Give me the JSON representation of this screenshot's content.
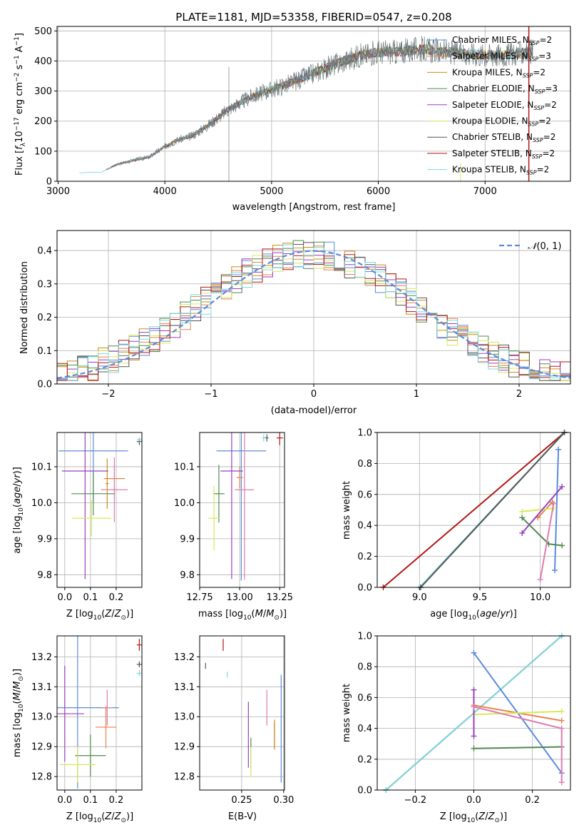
{
  "figure": {
    "title": "PLATE=1181, MJD=53358, FIBERID=0547, z=0.208"
  },
  "colors": {
    "chabrier_miles": "#5b8bd9",
    "salpeter_miles": "#e8814d",
    "kroupa_miles": "#c98a1c",
    "chabrier_elodie": "#4d8b4d",
    "salpeter_elodie": "#9a3fc0",
    "kroupa_elodie": "#d9e85a",
    "chabrier_stelib": "#555555",
    "salpeter_stelib": "#b01818",
    "kroupa_stelib": "#7fd8e0",
    "pink": "#e07bb0",
    "grid": "#b0b0b0"
  },
  "chart_data": [
    {
      "id": "spectrum",
      "type": "line",
      "title": "PLATE=1181, MJD=53358, FIBERID=0547, z=0.208",
      "xlabel": "wavelength [Angstrom, rest frame]",
      "ylabel": "Flux [f_λ 10^-17 erg cm^-2 s^-1 A^-1]",
      "xlim": [
        2990,
        7800
      ],
      "ylim": [
        0,
        515
      ],
      "xticks": [
        3000,
        4000,
        5000,
        6000,
        7000
      ],
      "yticks": [
        0,
        100,
        200,
        300,
        400,
        500
      ],
      "legend_position": "right",
      "legend": [
        {
          "label": "Chabrier MILES, N",
          "sub": "SSP",
          "tail": "=2"
        },
        {
          "label": "Salpeter MILES, N",
          "sub": "SSP",
          "tail": "=3"
        },
        {
          "label": "Kroupa MILES, N",
          "sub": "SSP",
          "tail": "=2"
        },
        {
          "label": "Chabrier ELODIE, N",
          "sub": "SSP",
          "tail": "=3"
        },
        {
          "label": "Salpeter ELODIE, N",
          "sub": "SSP",
          "tail": "=2"
        },
        {
          "label": "Kroupa ELODIE, N",
          "sub": "SSP",
          "tail": "=2"
        },
        {
          "label": "Chabrier STELIB, N",
          "sub": "SSP",
          "tail": "=2"
        },
        {
          "label": "Salpeter STELIB, N",
          "sub": "SSP",
          "tail": "=2"
        },
        {
          "label": "Kroupa STELIB, N",
          "sub": "SSP",
          "tail": "=2"
        }
      ],
      "continuum_x": [
        3200,
        3400,
        3550,
        3700,
        3850,
        4000,
        4100,
        4250,
        4400,
        4600,
        4800,
        5000,
        5200,
        5400,
        5600,
        5800,
        6000,
        6200,
        6400,
        6600,
        6800,
        7000,
        7200,
        7400
      ],
      "continuum_y": [
        28,
        30,
        55,
        70,
        80,
        115,
        135,
        150,
        185,
        240,
        280,
        305,
        330,
        360,
        390,
        415,
        430,
        430,
        440,
        430,
        425,
        420,
        420,
        430
      ]
    },
    {
      "id": "residuals",
      "type": "step",
      "xlabel": "(data-model)/error",
      "ylabel": "Normed distribution",
      "xlim": [
        -2.5,
        2.5
      ],
      "ylim": [
        0,
        0.46
      ],
      "xticks": [
        -2,
        -1,
        0,
        1,
        2
      ],
      "yticks": [
        0.0,
        0.1,
        0.2,
        0.3,
        0.4
      ],
      "legend": [
        {
          "label": "N(0,1)"
        }
      ],
      "legend_position": "top-right",
      "bin_width": 0.1
    },
    {
      "id": "age_vs_Z",
      "type": "scatter",
      "xlabel": "Z [log10(Z/Z⊙)]",
      "ylabel": "age [log10(age/yr)]",
      "xlim": [
        -0.03,
        0.3
      ],
      "ylim": [
        9.765,
        10.195
      ],
      "xticks": [
        0.0,
        0.1,
        0.2
      ],
      "yticks": [
        9.8,
        9.9,
        10.0,
        10.1
      ],
      "points": [
        {
          "series": "chabrier_miles",
          "x": 0.111,
          "y": 10.144,
          "xerr": 0.135,
          "yerr": 0.14
        },
        {
          "series": "salpeter_miles",
          "x": 0.193,
          "y": 10.067,
          "xerr": 0.041,
          "yerr": 0.04
        },
        {
          "series": "kroupa_miles",
          "x": 0.165,
          "y": 10.053,
          "xerr": 0.006,
          "yerr": 0.07
        },
        {
          "series": "chabrier_elodie",
          "x": 0.111,
          "y": 10.025,
          "xerr": 0.085,
          "yerr": 0.06
        },
        {
          "series": "salpeter_elodie",
          "x": 0.079,
          "y": 10.088,
          "xerr": 0.09,
          "yerr": 0.3
        },
        {
          "series": "kroupa_elodie",
          "x": 0.104,
          "y": 9.957,
          "xerr": 0.077,
          "yerr": 0.05
        },
        {
          "series": "pink",
          "x": 0.193,
          "y": 10.036,
          "xerr": 0.052,
          "yerr": 0.09
        },
        {
          "series": "chabrier_stelib",
          "x": 0.29,
          "y": 10.17,
          "xerr": 0.01,
          "yerr": 0.01
        },
        {
          "series": "kroupa_stelib",
          "x": 0.291,
          "y": 10.175,
          "xerr": 0.01,
          "yerr": 0.005
        }
      ]
    },
    {
      "id": "age_vs_mass",
      "type": "scatter",
      "xlabel": "mass [log10(M/M⊙)]",
      "ylabel": "",
      "xlim": [
        12.75,
        13.28
      ],
      "ylim": [
        9.765,
        10.195
      ],
      "xticks": [
        12.75,
        13.0,
        13.25
      ],
      "yticks": [
        9.8,
        9.9,
        10.0,
        10.1
      ],
      "points": [
        {
          "series": "chabrier_miles",
          "x": 13.01,
          "y": 10.144,
          "xerr": 0.155,
          "yerr": 0.36
        },
        {
          "series": "salpeter_miles",
          "x": 13.0,
          "y": 10.07,
          "xerr": 0.02,
          "yerr": 0.03
        },
        {
          "series": "chabrier_elodie",
          "x": 12.87,
          "y": 10.025,
          "xerr": 0.035,
          "yerr": 0.08
        },
        {
          "series": "salpeter_elodie",
          "x": 12.95,
          "y": 10.088,
          "xerr": 0.07,
          "yerr": 0.3
        },
        {
          "series": "kroupa_elodie",
          "x": 12.84,
          "y": 9.957,
          "xerr": 0.035,
          "yerr": 0.09
        },
        {
          "series": "pink",
          "x": 13.03,
          "y": 10.036,
          "xerr": 0.06,
          "yerr": 0.25
        },
        {
          "series": "salpeter_stelib",
          "x": 13.25,
          "y": 10.18,
          "xerr": 0.02,
          "yerr": 0.02
        },
        {
          "series": "chabrier_stelib",
          "x": 13.17,
          "y": 10.18,
          "xerr": 0.01,
          "yerr": 0.01
        },
        {
          "series": "kroupa_stelib",
          "x": 13.15,
          "y": 10.18,
          "xerr": 0.01,
          "yerr": 0.01
        }
      ]
    },
    {
      "id": "massweight_vs_age",
      "type": "line",
      "xlabel": "age [log10(age/yr)]",
      "ylabel": "mass weight",
      "xlim": [
        8.65,
        10.25
      ],
      "ylim": [
        0,
        1.0
      ],
      "xticks": [
        9.0,
        9.5,
        10.0
      ],
      "yticks": [
        0.0,
        0.2,
        0.4,
        0.6,
        0.8,
        1.0
      ],
      "series": [
        {
          "name": "salpeter_stelib",
          "x": [
            8.7,
            10.2
          ],
          "y": [
            0.0,
            1.0
          ]
        },
        {
          "name": "kroupa_stelib",
          "x": [
            9.0,
            10.2
          ],
          "y": [
            0.0,
            1.0
          ]
        },
        {
          "name": "chabrier_stelib",
          "x": [
            9.01,
            10.2
          ],
          "y": [
            0.0,
            1.0
          ]
        },
        {
          "name": "chabrier_miles",
          "x": [
            10.15,
            10.12
          ],
          "y": [
            0.89,
            0.11
          ]
        },
        {
          "name": "salpeter_miles",
          "x": [
            9.98,
            10.1
          ],
          "y": [
            0.45,
            0.55
          ]
        },
        {
          "name": "kroupa_elodie",
          "x": [
            9.85,
            10.11
          ],
          "y": [
            0.49,
            0.51
          ]
        },
        {
          "name": "salpeter_elodie",
          "x": [
            9.85,
            10.18
          ],
          "y": [
            0.35,
            0.65
          ]
        },
        {
          "name": "chabrier_elodie",
          "x": [
            9.85,
            10.07,
            10.18
          ],
          "y": [
            0.45,
            0.28,
            0.27
          ]
        },
        {
          "name": "pink",
          "x": [
            10.0,
            10.11
          ],
          "y": [
            0.05,
            0.54
          ]
        }
      ]
    },
    {
      "id": "mass_vs_Z",
      "type": "scatter",
      "xlabel": "Z [log10(Z/Z⊙)]",
      "ylabel": "mass [log10(M/M⊙)]",
      "xlim": [
        -0.03,
        0.3
      ],
      "ylim": [
        12.755,
        13.27
      ],
      "xticks": [
        0.0,
        0.1,
        0.2
      ],
      "yticks": [
        12.8,
        12.9,
        13.0,
        13.1,
        13.2
      ],
      "points": [
        {
          "series": "chabrier_miles",
          "x": 0.05,
          "y": 13.03,
          "xerr": 0.16,
          "yerr": 0.27
        },
        {
          "series": "salpeter_miles",
          "x": 0.16,
          "y": 12.965,
          "xerr": 0.04,
          "yerr": 0.07
        },
        {
          "series": "chabrier_elodie",
          "x": 0.1,
          "y": 12.87,
          "xerr": 0.06,
          "yerr": 0.07
        },
        {
          "series": "salpeter_elodie",
          "x": 0.0,
          "y": 13.01,
          "xerr": 0.075,
          "yerr": 0.16
        },
        {
          "series": "kroupa_elodie",
          "x": 0.05,
          "y": 12.84,
          "xerr": 0.07,
          "yerr": 0.06
        },
        {
          "series": "pink",
          "x": 0.165,
          "y": 13.03,
          "xerr": 0.02,
          "yerr": 0.06
        },
        {
          "series": "salpeter_stelib",
          "x": 0.29,
          "y": 13.24,
          "xerr": 0.01,
          "yerr": 0.02
        },
        {
          "series": "chabrier_stelib",
          "x": 0.29,
          "y": 13.175,
          "xerr": 0.01,
          "yerr": 0.01
        },
        {
          "series": "kroupa_stelib",
          "x": 0.29,
          "y": 13.145,
          "xerr": 0.01,
          "yerr": 0.01
        }
      ]
    },
    {
      "id": "mass_vs_ebv",
      "type": "scatter",
      "xlabel": "E(B-V)",
      "ylabel": "",
      "xlim": [
        0.2,
        0.301
      ],
      "ylim": [
        12.755,
        13.27
      ],
      "xticks": [
        0.25,
        0.3
      ],
      "yticks": [
        12.8,
        12.9,
        13.0,
        13.1,
        13.2
      ],
      "points": [
        {
          "series": "chabrier_miles",
          "x": 0.297,
          "y": 12.96,
          "yerr": 0.18
        },
        {
          "series": "salpeter_miles",
          "x": 0.289,
          "y": 12.94,
          "yerr": 0.04
        },
        {
          "series": "kroupa_miles",
          "x": 0.289,
          "y": 12.94,
          "yerr": 0.05
        },
        {
          "series": "chabrier_elodie",
          "x": 0.261,
          "y": 12.88,
          "yerr": 0.05
        },
        {
          "series": "salpeter_elodie",
          "x": 0.258,
          "y": 12.94,
          "yerr": 0.11
        },
        {
          "series": "kroupa_elodie",
          "x": 0.261,
          "y": 12.85,
          "yerr": 0.05
        },
        {
          "series": "pink",
          "x": 0.28,
          "y": 13.03,
          "yerr": 0.06
        },
        {
          "series": "salpeter_stelib",
          "x": 0.228,
          "y": 13.24,
          "yerr": 0.02
        },
        {
          "series": "chabrier_stelib",
          "x": 0.207,
          "y": 13.17,
          "yerr": 0.01
        },
        {
          "series": "kroupa_stelib",
          "x": 0.233,
          "y": 13.14,
          "yerr": 0.01
        }
      ]
    },
    {
      "id": "massweight_vs_Z",
      "type": "line",
      "xlabel": "Z [log10(Z/Z⊙)]",
      "ylabel": "mass weight",
      "xlim": [
        -0.33,
        0.33
      ],
      "ylim": [
        0,
        1.0
      ],
      "xticks": [
        -0.2,
        0.0,
        0.2
      ],
      "yticks": [
        0.0,
        0.2,
        0.4,
        0.6,
        0.8,
        1.0
      ],
      "series": [
        {
          "name": "chabrier_stelib",
          "x": [
            -0.3,
            0.3
          ],
          "y": [
            0.0,
            1.0
          ]
        },
        {
          "name": "kroupa_stelib",
          "x": [
            -0.3,
            0.3
          ],
          "y": [
            0.0,
            1.0
          ]
        },
        {
          "name": "chabrier_miles",
          "x": [
            0.0,
            0.3
          ],
          "y": [
            0.89,
            0.11
          ]
        },
        {
          "name": "salpeter_miles",
          "x": [
            0.0,
            0.3
          ],
          "y": [
            0.55,
            0.45
          ]
        },
        {
          "name": "kroupa_elodie",
          "x": [
            0.0,
            0.3
          ],
          "y": [
            0.49,
            0.51
          ]
        },
        {
          "name": "chabrier_elodie",
          "x": [
            0.0,
            0.3
          ],
          "y": [
            0.27,
            0.28
          ]
        },
        {
          "name": "salpeter_elodie",
          "x": [
            0.0,
            0.0
          ],
          "y": [
            0.35,
            0.65
          ]
        },
        {
          "name": "pink",
          "x": [
            0.0,
            0.3,
            0.3
          ],
          "y": [
            0.54,
            0.4,
            0.05
          ]
        }
      ]
    }
  ]
}
